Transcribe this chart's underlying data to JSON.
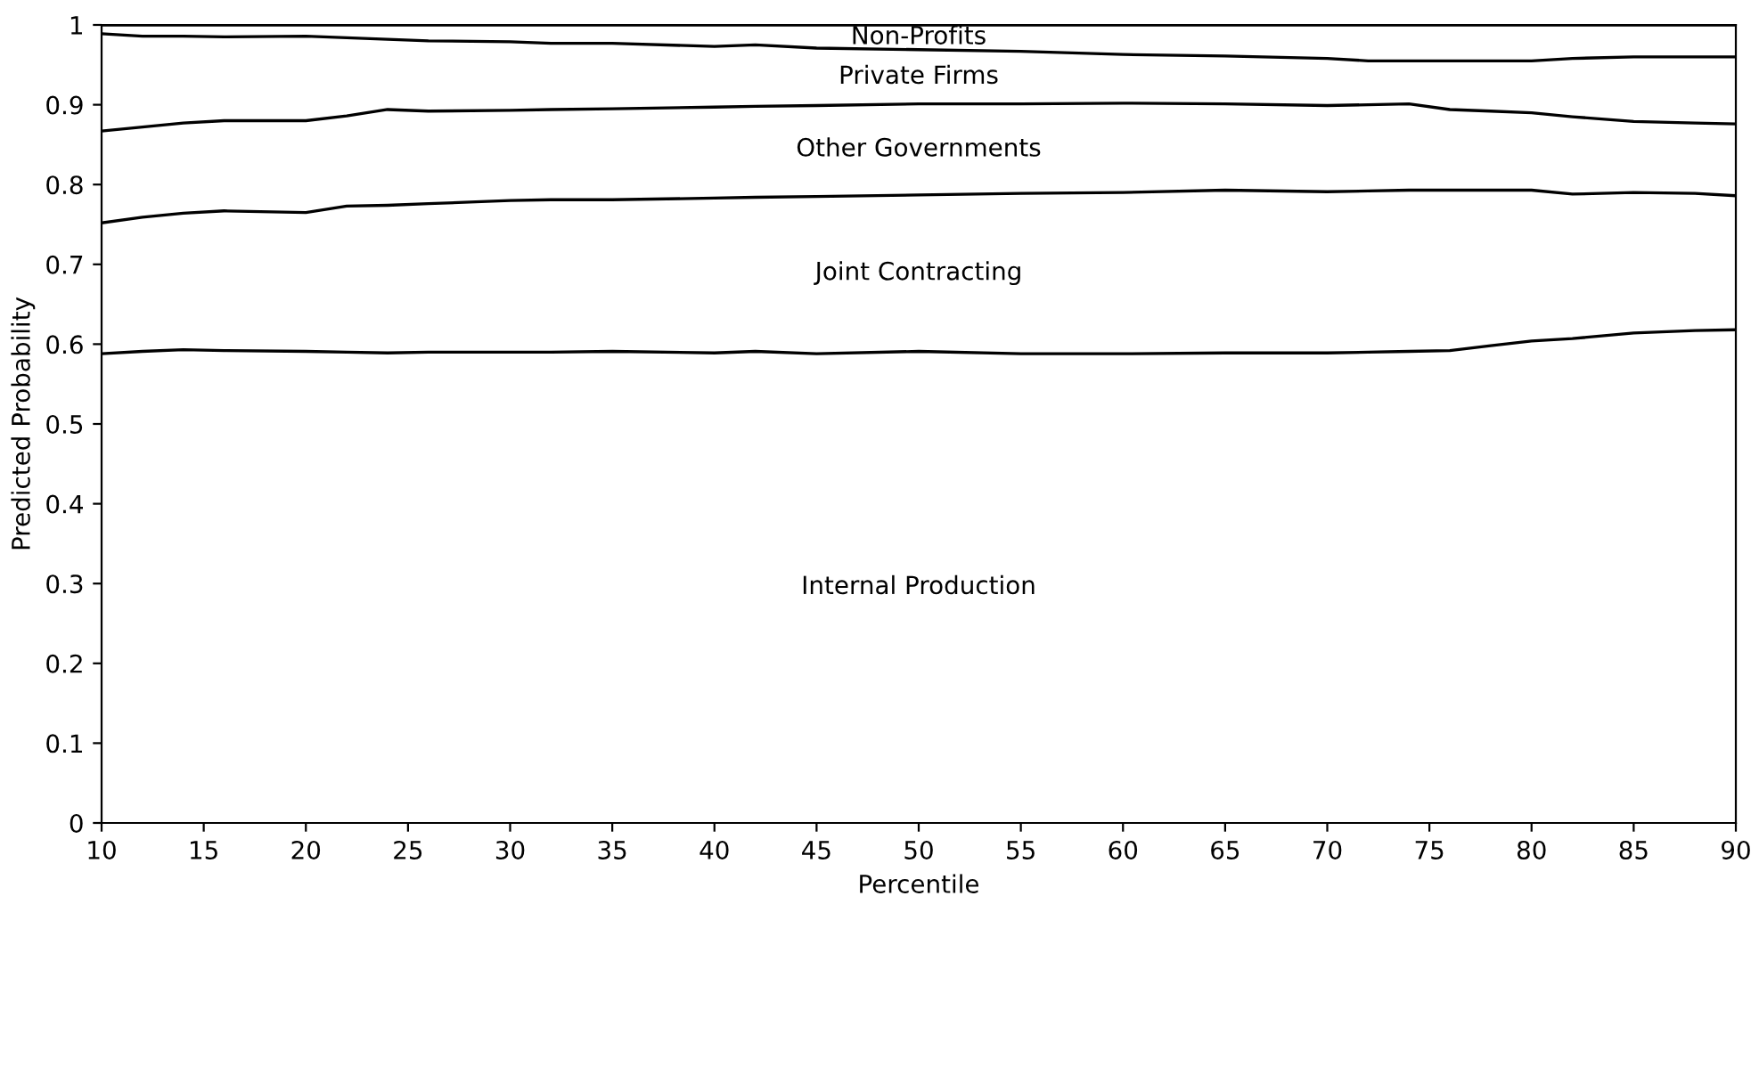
{
  "chart_data": {
    "type": "area",
    "stacked": true,
    "xlabel": "Percentile",
    "ylabel": "Predicted Probability",
    "x": [
      10,
      12,
      14,
      16,
      20,
      22,
      24,
      26,
      30,
      32,
      35,
      40,
      42,
      45,
      50,
      55,
      60,
      65,
      70,
      72,
      74,
      76,
      78,
      80,
      82,
      85,
      88,
      90
    ],
    "series": [
      {
        "name": "Internal Production",
        "color": "#000000",
        "values": [
          0.588,
          0.591,
          0.593,
          0.592,
          0.591,
          0.59,
          0.589,
          0.59,
          0.59,
          0.59,
          0.591,
          0.589,
          0.591,
          0.588,
          0.591,
          0.588,
          0.588,
          0.589,
          0.589,
          0.59,
          0.591,
          0.592,
          0.598,
          0.604,
          0.607,
          0.614,
          0.617,
          0.618
        ]
      },
      {
        "name": "Joint Contracting",
        "color": "#000000",
        "values": [
          0.164,
          0.168,
          0.171,
          0.175,
          0.174,
          0.183,
          0.185,
          0.186,
          0.19,
          0.191,
          0.19,
          0.194,
          0.193,
          0.197,
          0.196,
          0.201,
          0.202,
          0.204,
          0.202,
          0.202,
          0.202,
          0.201,
          0.195,
          0.189,
          0.181,
          0.176,
          0.172,
          0.168
        ]
      },
      {
        "name": "Other Governments",
        "color": "#000000",
        "values": [
          0.115,
          0.113,
          0.113,
          0.113,
          0.115,
          0.113,
          0.12,
          0.116,
          0.113,
          0.113,
          0.114,
          0.114,
          0.114,
          0.114,
          0.114,
          0.112,
          0.112,
          0.108,
          0.108,
          0.108,
          0.108,
          0.101,
          0.099,
          0.097,
          0.097,
          0.089,
          0.088,
          0.09
        ]
      },
      {
        "name": "Private Firms",
        "color": "#000000",
        "values": [
          0.122,
          0.114,
          0.109,
          0.105,
          0.106,
          0.098,
          0.088,
          0.088,
          0.086,
          0.083,
          0.082,
          0.076,
          0.077,
          0.072,
          0.068,
          0.066,
          0.061,
          0.06,
          0.059,
          0.055,
          0.054,
          0.061,
          0.063,
          0.065,
          0.073,
          0.081,
          0.083,
          0.084
        ]
      },
      {
        "name": "Non-Profits",
        "color": "#000000",
        "values": [
          0.011,
          0.014,
          0.014,
          0.015,
          0.014,
          0.016,
          0.018,
          0.02,
          0.021,
          0.023,
          0.023,
          0.027,
          0.025,
          0.029,
          0.031,
          0.033,
          0.037,
          0.039,
          0.042,
          0.045,
          0.045,
          0.045,
          0.045,
          0.045,
          0.042,
          0.04,
          0.04,
          0.04
        ]
      }
    ],
    "xlim": [
      10,
      90
    ],
    "xticks": [
      10,
      15,
      20,
      25,
      30,
      35,
      40,
      45,
      50,
      55,
      60,
      65,
      70,
      75,
      80,
      85,
      90
    ],
    "ylim": [
      0,
      1
    ],
    "yticks": [
      0,
      0.1,
      0.2,
      0.3,
      0.4,
      0.5,
      0.6,
      0.7,
      0.8,
      0.9,
      1
    ],
    "grid": false,
    "legend": false
  }
}
